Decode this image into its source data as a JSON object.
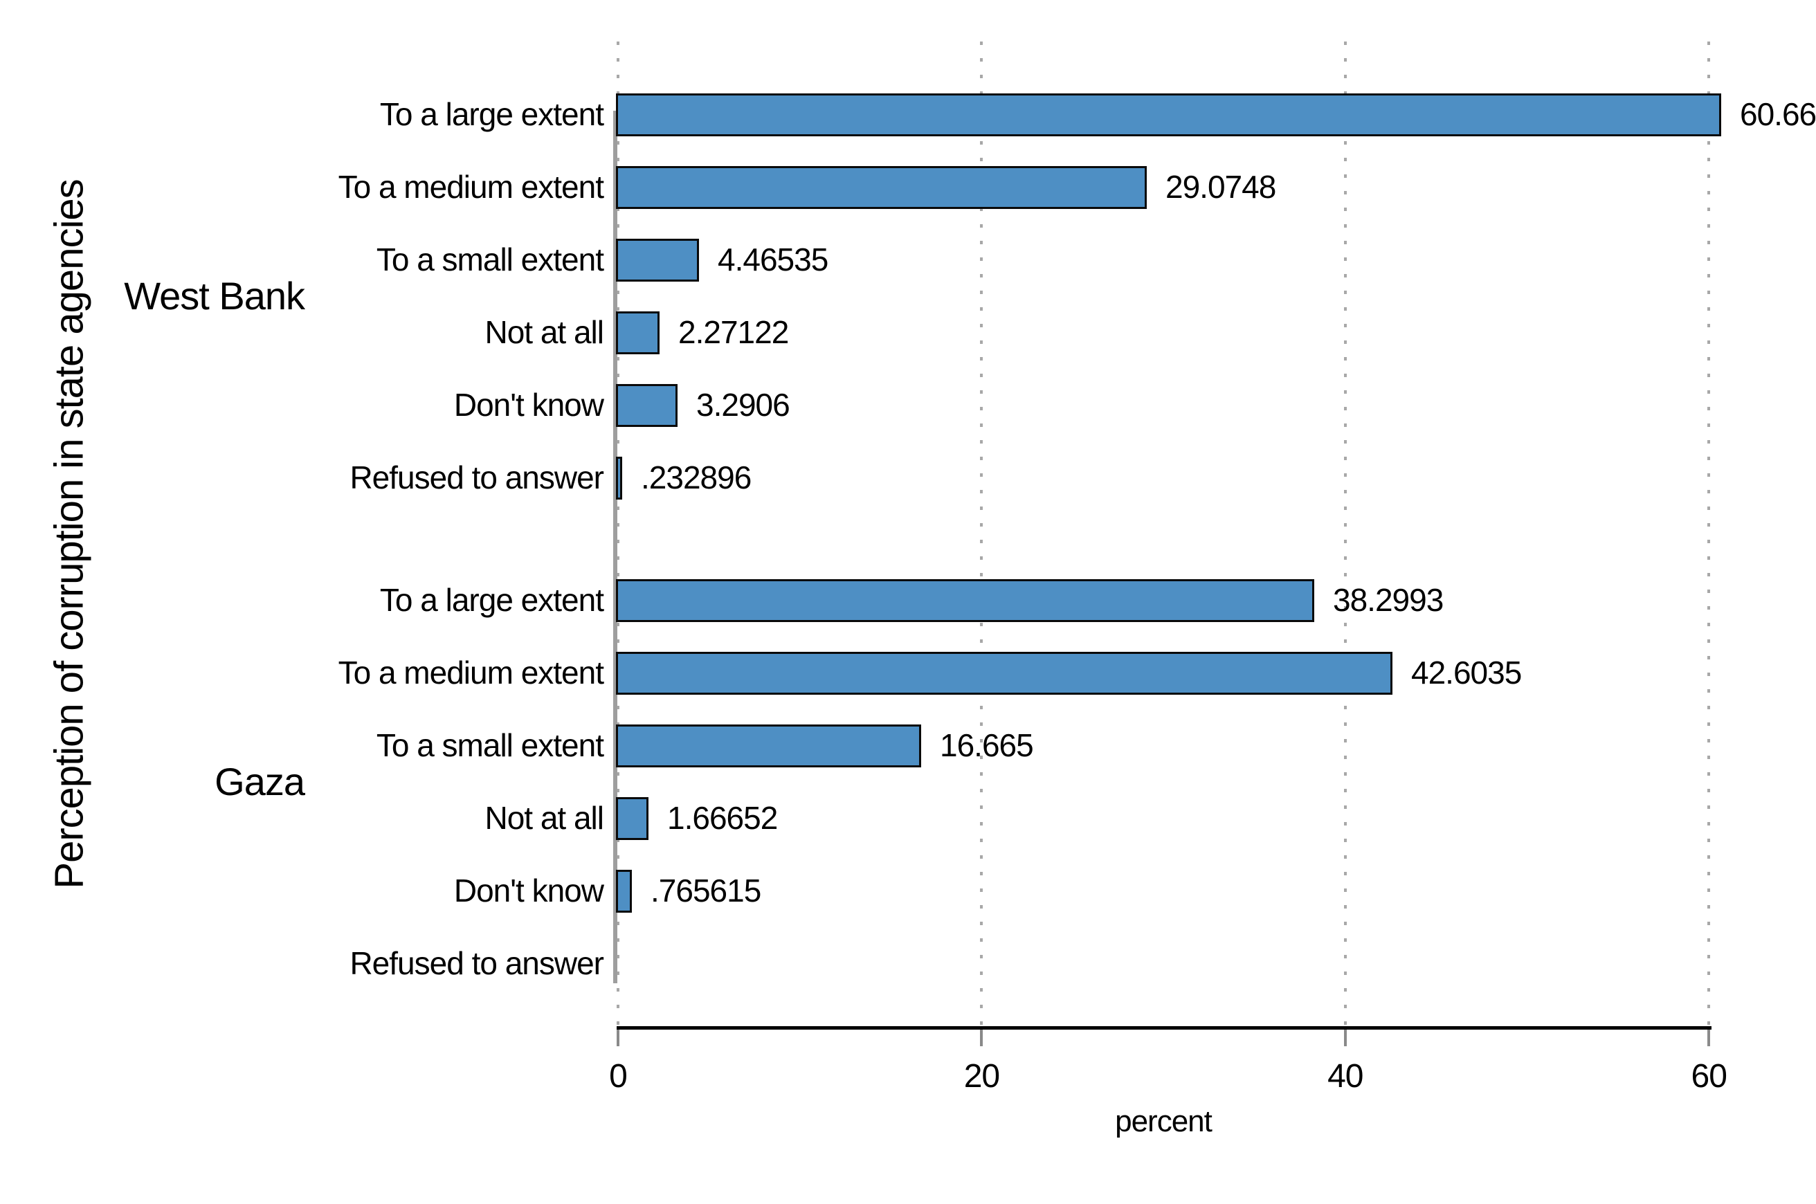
{
  "chart_data": {
    "type": "bar",
    "orientation": "horizontal",
    "ylabel": "Perception of corruption in state agencies",
    "xlabel": "percent",
    "xlim": [
      0,
      60
    ],
    "xticks": [
      0,
      20,
      40,
      60
    ],
    "grid": "dotted-vertical",
    "legend": "none",
    "bar_color": "#4e8fc4",
    "bar_border_color": "#0a0a0a",
    "axis_line_color": "#000000",
    "spine_color": "#9e9e9e",
    "gridline_color": "#a8a8a8",
    "groups": [
      {
        "name": "West Bank",
        "categories": [
          "To a large extent",
          "To a medium extent",
          "To a small extent",
          "Not at all",
          "Don't know",
          "Refused to answer"
        ],
        "values": [
          60.66,
          29.0748,
          4.46535,
          2.27122,
          3.2906,
          0.232896
        ],
        "value_labels": [
          "60.66",
          "29.0748",
          "4.46535",
          "2.27122",
          "3.2906",
          ".232896"
        ]
      },
      {
        "name": "Gaza",
        "categories": [
          "To a large extent",
          "To a medium extent",
          "To a small extent",
          "Not at all",
          "Don't know",
          "Refused to answer"
        ],
        "values": [
          38.2993,
          42.6035,
          16.665,
          1.66652,
          0.765615,
          0
        ],
        "value_labels": [
          "38.2993",
          "42.6035",
          "16.665",
          "1.66652",
          ".765615",
          ""
        ]
      }
    ]
  }
}
